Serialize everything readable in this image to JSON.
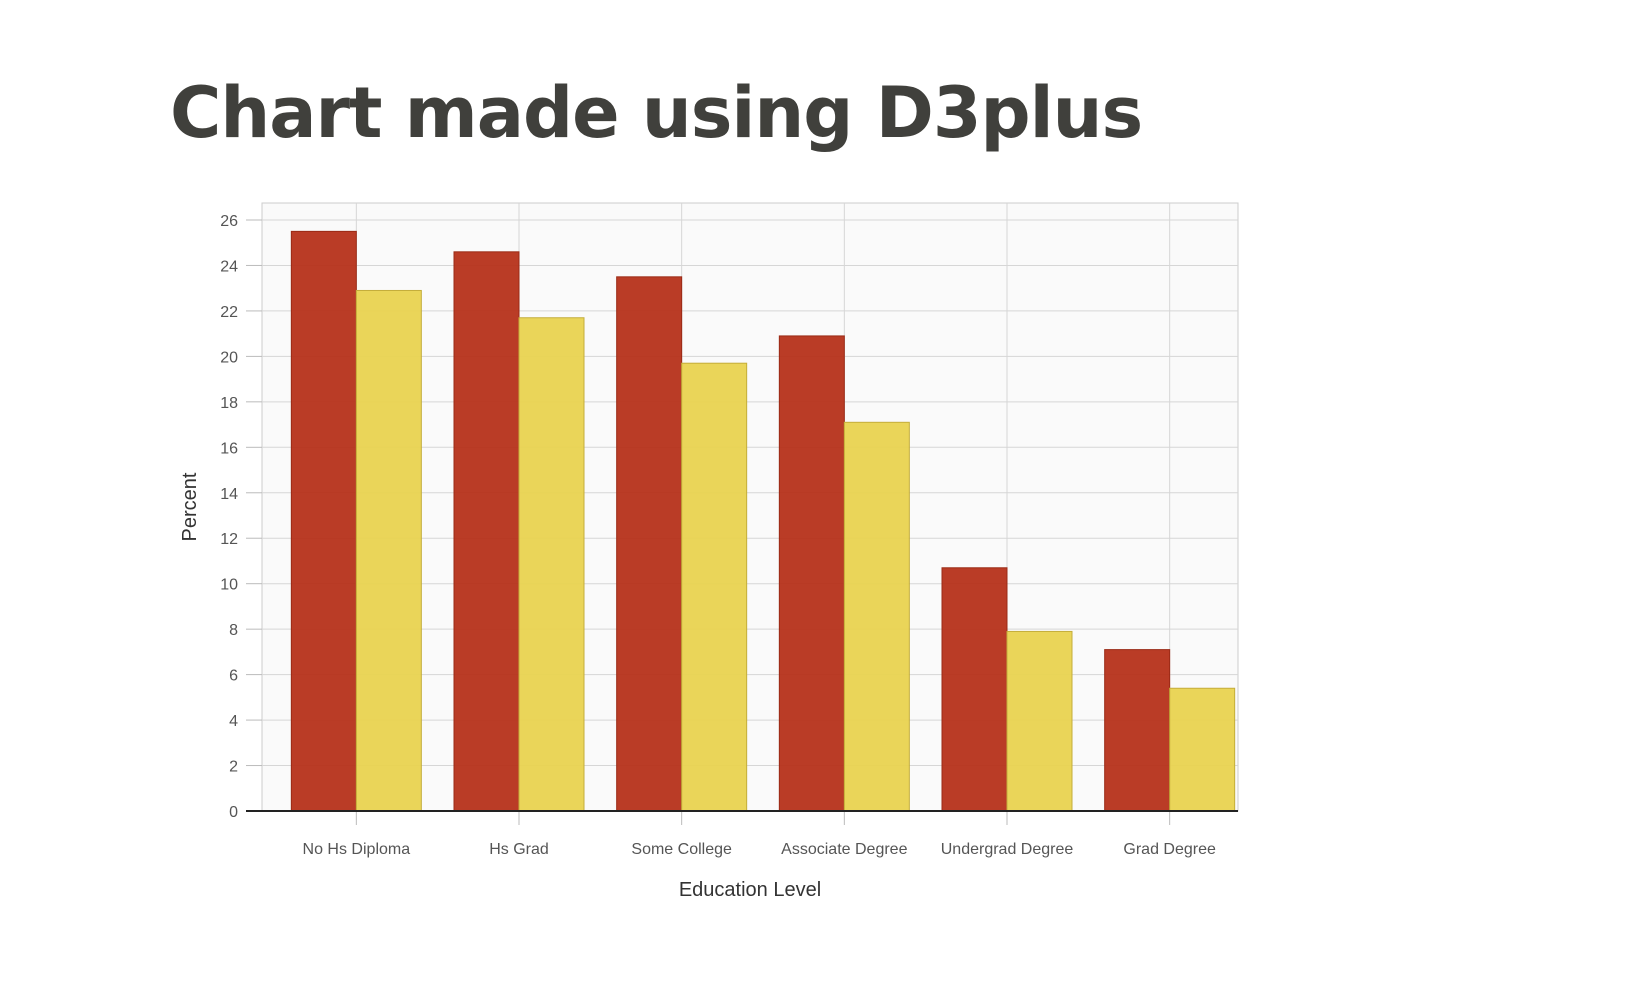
{
  "page": {
    "title": "Chart made using D3plus"
  },
  "chart_data": {
    "type": "bar",
    "categories": [
      "No Hs Diploma",
      "Hs Grad",
      "Some College",
      "Associate Degree",
      "Undergrad Degree",
      "Grad Degree"
    ],
    "series": [
      {
        "values": [
          25.5,
          24.6,
          23.5,
          20.9,
          10.7,
          7.1
        ],
        "color": "#b6321a"
      },
      {
        "values": [
          22.9,
          21.7,
          19.7,
          17.1,
          7.9,
          5.4
        ],
        "color": "#e9d350"
      }
    ],
    "xlabel": "Education Level",
    "ylabel": "Percent",
    "ylim": [
      0,
      26
    ],
    "yticks": [
      0,
      2,
      4,
      6,
      8,
      10,
      12,
      14,
      16,
      18,
      20,
      22,
      24,
      26
    ],
    "grid": true,
    "legend": "none"
  }
}
